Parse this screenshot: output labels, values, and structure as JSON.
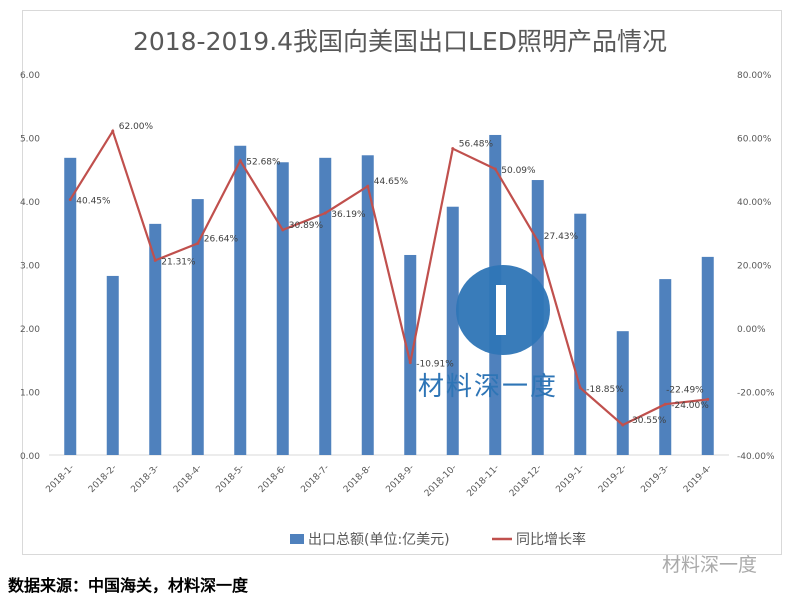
{
  "chart_data": {
    "type": "bar+line",
    "title": "2018-2019.4我国向美国出口LED照明产品情况",
    "categories": [
      "2018-1-",
      "2018-2-",
      "2018-3-",
      "2018-4-",
      "2018-5-",
      "2018-6-",
      "2018-7-",
      "2018-8-",
      "2018-9-",
      "2018-10-",
      "2018-11-",
      "2018-12-",
      "2019-1-",
      "2019-2-",
      "2019-3-",
      "2019-4-"
    ],
    "series": [
      {
        "name": "出口总额(单位:亿美元)",
        "type": "bar",
        "axis": "left",
        "color": "#4f81bd",
        "values": [
          4.68,
          2.82,
          3.64,
          4.03,
          4.87,
          4.61,
          4.68,
          4.72,
          3.15,
          3.91,
          5.04,
          4.33,
          3.8,
          1.95,
          2.77,
          3.12
        ]
      },
      {
        "name": "同比增长率",
        "type": "line",
        "axis": "right",
        "color": "#c0504d",
        "values": [
          40.45,
          62.0,
          21.31,
          26.64,
          52.68,
          30.89,
          36.19,
          44.65,
          -10.91,
          56.48,
          50.09,
          27.43,
          -18.85,
          -30.55,
          -24.0,
          -22.49
        ],
        "labels": [
          "40.45%",
          "62.00%",
          "21.31%",
          "26.64%",
          "52.68%",
          "30.89%",
          "36.19%",
          "44.65%",
          "-10.91%",
          "56.48%",
          "50.09%",
          "27.43%",
          "-18.85%",
          "-30.55%",
          "-24.00%",
          "-22.49%"
        ]
      }
    ],
    "ylim_left": [
      0,
      6
    ],
    "yticks_left": [
      "0.00",
      "1.00",
      "2.00",
      "3.00",
      "4.00",
      "5.00",
      "6.00"
    ],
    "ylim_right": [
      -40,
      80
    ],
    "yticks_right": [
      "-40.00%",
      "-20.00%",
      "0.00%",
      "20.00%",
      "40.00%",
      "60.00%",
      "80.00%"
    ],
    "grid": false,
    "legend": "bottom"
  },
  "source": "数据来源：中国海关，材料深一度",
  "watermark": "材料深一度",
  "logo_text": "材料深一度"
}
